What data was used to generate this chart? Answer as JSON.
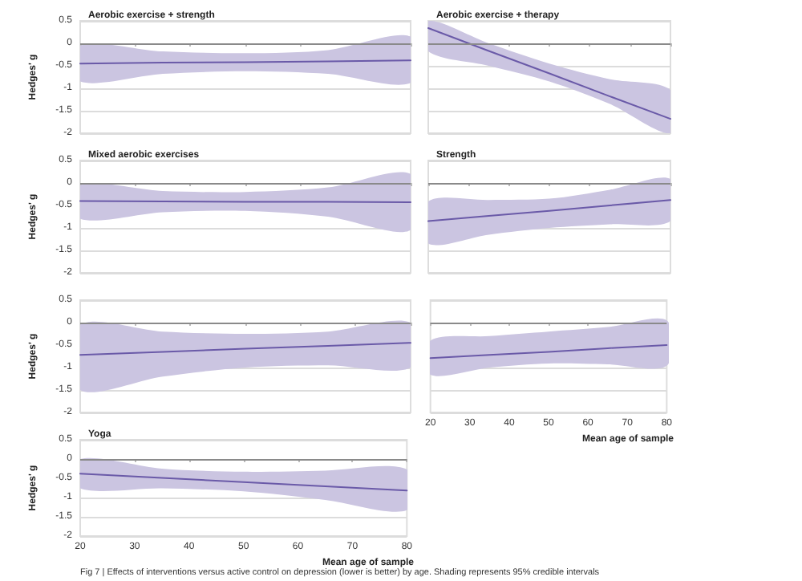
{
  "chart_data": [
    {
      "type": "line",
      "title": "Aerobic exercise + strength",
      "ylabel": "Hedges' g",
      "xlim": [
        20,
        80
      ],
      "ylim": [
        -2,
        0.5
      ],
      "xticks": [
        20,
        30,
        40,
        50,
        60,
        70,
        80
      ],
      "yticks": [
        -2,
        -1.5,
        -1,
        -0.5,
        0,
        0.5
      ],
      "tick_labels": "y",
      "grid": "y",
      "marker": "none",
      "ref_lines": [
        {
          "axis": "y",
          "value": 0,
          "color": "#8a8a8a"
        }
      ],
      "series": [
        {
          "color": "#6a5aa8",
          "x": [
            20,
            35,
            50,
            65,
            80
          ],
          "values": [
            -0.45,
            -0.43,
            -0.42,
            -0.4,
            -0.38
          ],
          "lower": [
            -0.85,
            -0.68,
            -0.62,
            -0.68,
            -0.88
          ],
          "upper": [
            -0.05,
            -0.18,
            -0.22,
            -0.15,
            0.15
          ]
        }
      ]
    },
    {
      "type": "line",
      "title": "Aerobic exercise + therapy",
      "xlim": [
        20,
        80
      ],
      "ylim": [
        -2,
        0.5
      ],
      "xticks": [
        20,
        30,
        40,
        50,
        60,
        70,
        80
      ],
      "yticks": [
        -2,
        -1.5,
        -1,
        -0.5,
        0,
        0.5
      ],
      "tick_labels": false,
      "grid": "y",
      "marker": "none",
      "ref_lines": [
        {
          "axis": "y",
          "value": 0,
          "color": "#8a8a8a"
        }
      ],
      "series": [
        {
          "color": "#6a5aa8",
          "x": [
            20,
            35,
            50,
            65,
            80
          ],
          "values": [
            0.34,
            -0.17,
            -0.67,
            -1.18,
            -1.68
          ],
          "lower": [
            -0.18,
            -0.5,
            -0.85,
            -1.35,
            -2
          ],
          "upper": [
            0.5,
            0.0,
            -0.45,
            -0.8,
            -1.04
          ]
        }
      ]
    },
    {
      "type": "line",
      "title": "Mixed aerobic exercises",
      "ylabel": "Hedges' g",
      "xlim": [
        20,
        80
      ],
      "ylim": [
        -2,
        0.5
      ],
      "xticks": [
        20,
        30,
        40,
        50,
        60,
        70,
        80
      ],
      "yticks": [
        -2,
        -1.5,
        -1,
        -0.5,
        0,
        0.5
      ],
      "tick_labels": "y",
      "grid": "y",
      "marker": "none",
      "ref_lines": [
        {
          "axis": "y",
          "value": 0,
          "color": "#8a8a8a"
        }
      ],
      "series": [
        {
          "color": "#6a5aa8",
          "x": [
            20,
            35,
            50,
            65,
            80
          ],
          "values": [
            -0.4,
            -0.41,
            -0.42,
            -0.42,
            -0.43
          ],
          "lower": [
            -0.8,
            -0.65,
            -0.62,
            -0.75,
            -1.05
          ],
          "upper": [
            -0.05,
            -0.18,
            -0.2,
            -0.1,
            0.2
          ]
        }
      ]
    },
    {
      "type": "line",
      "title": "Strength",
      "xlim": [
        20,
        80
      ],
      "ylim": [
        -2,
        0.5
      ],
      "xticks": [
        20,
        30,
        40,
        50,
        60,
        70,
        80
      ],
      "yticks": [
        -2,
        -1.5,
        -1,
        -0.5,
        0,
        0.5
      ],
      "tick_labels": false,
      "grid": "y",
      "marker": "none",
      "ref_lines": [
        {
          "axis": "y",
          "value": 0,
          "color": "#8a8a8a"
        }
      ],
      "series": [
        {
          "color": "#6a5aa8",
          "x": [
            20,
            35,
            50,
            65,
            80
          ],
          "values": [
            -0.85,
            -0.73,
            -0.62,
            -0.5,
            -0.38
          ],
          "lower": [
            -1.35,
            -1.15,
            -1.0,
            -0.92,
            -0.85
          ],
          "upper": [
            -0.41,
            -0.38,
            -0.35,
            -0.15,
            0.09
          ]
        }
      ]
    },
    {
      "type": "line",
      "ylabel": "Hedges' g",
      "xlim": [
        20,
        80
      ],
      "ylim": [
        -2,
        0.5
      ],
      "xticks": [
        20,
        30,
        40,
        50,
        60,
        70,
        80
      ],
      "yticks": [
        -2,
        -1.5,
        -1,
        -0.5,
        0,
        0.5
      ],
      "tick_labels": "y",
      "grid": "y",
      "marker": "none",
      "ref_lines": [
        {
          "axis": "y",
          "value": 0,
          "color": "#8a8a8a"
        }
      ],
      "series": [
        {
          "color": "#6a5aa8",
          "x": [
            20,
            35,
            50,
            65,
            80
          ],
          "values": [
            -0.72,
            -0.65,
            -0.58,
            -0.52,
            -0.45
          ],
          "lower": [
            -1.5,
            -1.2,
            -1.0,
            -0.95,
            -1.0
          ],
          "upper": [
            -0.05,
            -0.2,
            -0.25,
            -0.2,
            0.0
          ]
        }
      ]
    },
    {
      "type": "line",
      "xlabel": "Mean age of sample",
      "xlim": [
        20,
        80
      ],
      "ylim": [
        -2,
        0.5
      ],
      "xticks": [
        20,
        30,
        40,
        50,
        60,
        70,
        80
      ],
      "yticks": [
        -2,
        -1.5,
        -1,
        -0.5,
        0,
        0.5
      ],
      "tick_labels": "x",
      "grid": "y",
      "marker": "none",
      "ref_lines": [
        {
          "axis": "y",
          "value": 0,
          "color": "#8a8a8a"
        }
      ],
      "series": [
        {
          "color": "#6a5aa8",
          "x": [
            20,
            35,
            50,
            65,
            80
          ],
          "values": [
            -0.79,
            -0.72,
            -0.65,
            -0.57,
            -0.5
          ],
          "lower": [
            -1.16,
            -1.0,
            -0.91,
            -0.93,
            -0.96
          ],
          "upper": [
            -0.4,
            -0.3,
            -0.2,
            -0.1,
            0.05
          ]
        }
      ]
    },
    {
      "type": "line",
      "title": "Yoga",
      "xlabel": "Mean age of sample",
      "ylabel": "Hedges' g",
      "xlim": [
        20,
        80
      ],
      "ylim": [
        -2,
        0.5
      ],
      "xticks": [
        20,
        30,
        40,
        50,
        60,
        70,
        80
      ],
      "yticks": [
        -2,
        -1.5,
        -1,
        -0.5,
        0,
        0.5
      ],
      "grid": "y",
      "marker": "none",
      "ref_lines": [
        {
          "axis": "y",
          "value": 0,
          "color": "#8a8a8a"
        }
      ],
      "annotations": [
        "Fig 7 | Effects of interventions versus active control on depression (lower is better) by age. Shading represents 95% credible intervals"
      ],
      "series": [
        {
          "color": "#6a5aa8",
          "x": [
            20,
            35,
            50,
            65,
            80
          ],
          "values": [
            -0.38,
            -0.49,
            -0.6,
            -0.71,
            -0.82
          ],
          "lower": [
            -0.76,
            -0.76,
            -0.84,
            -1.06,
            -1.33
          ],
          "upper": [
            0,
            -0.25,
            -0.33,
            -0.3,
            -0.27
          ]
        }
      ]
    }
  ]
}
